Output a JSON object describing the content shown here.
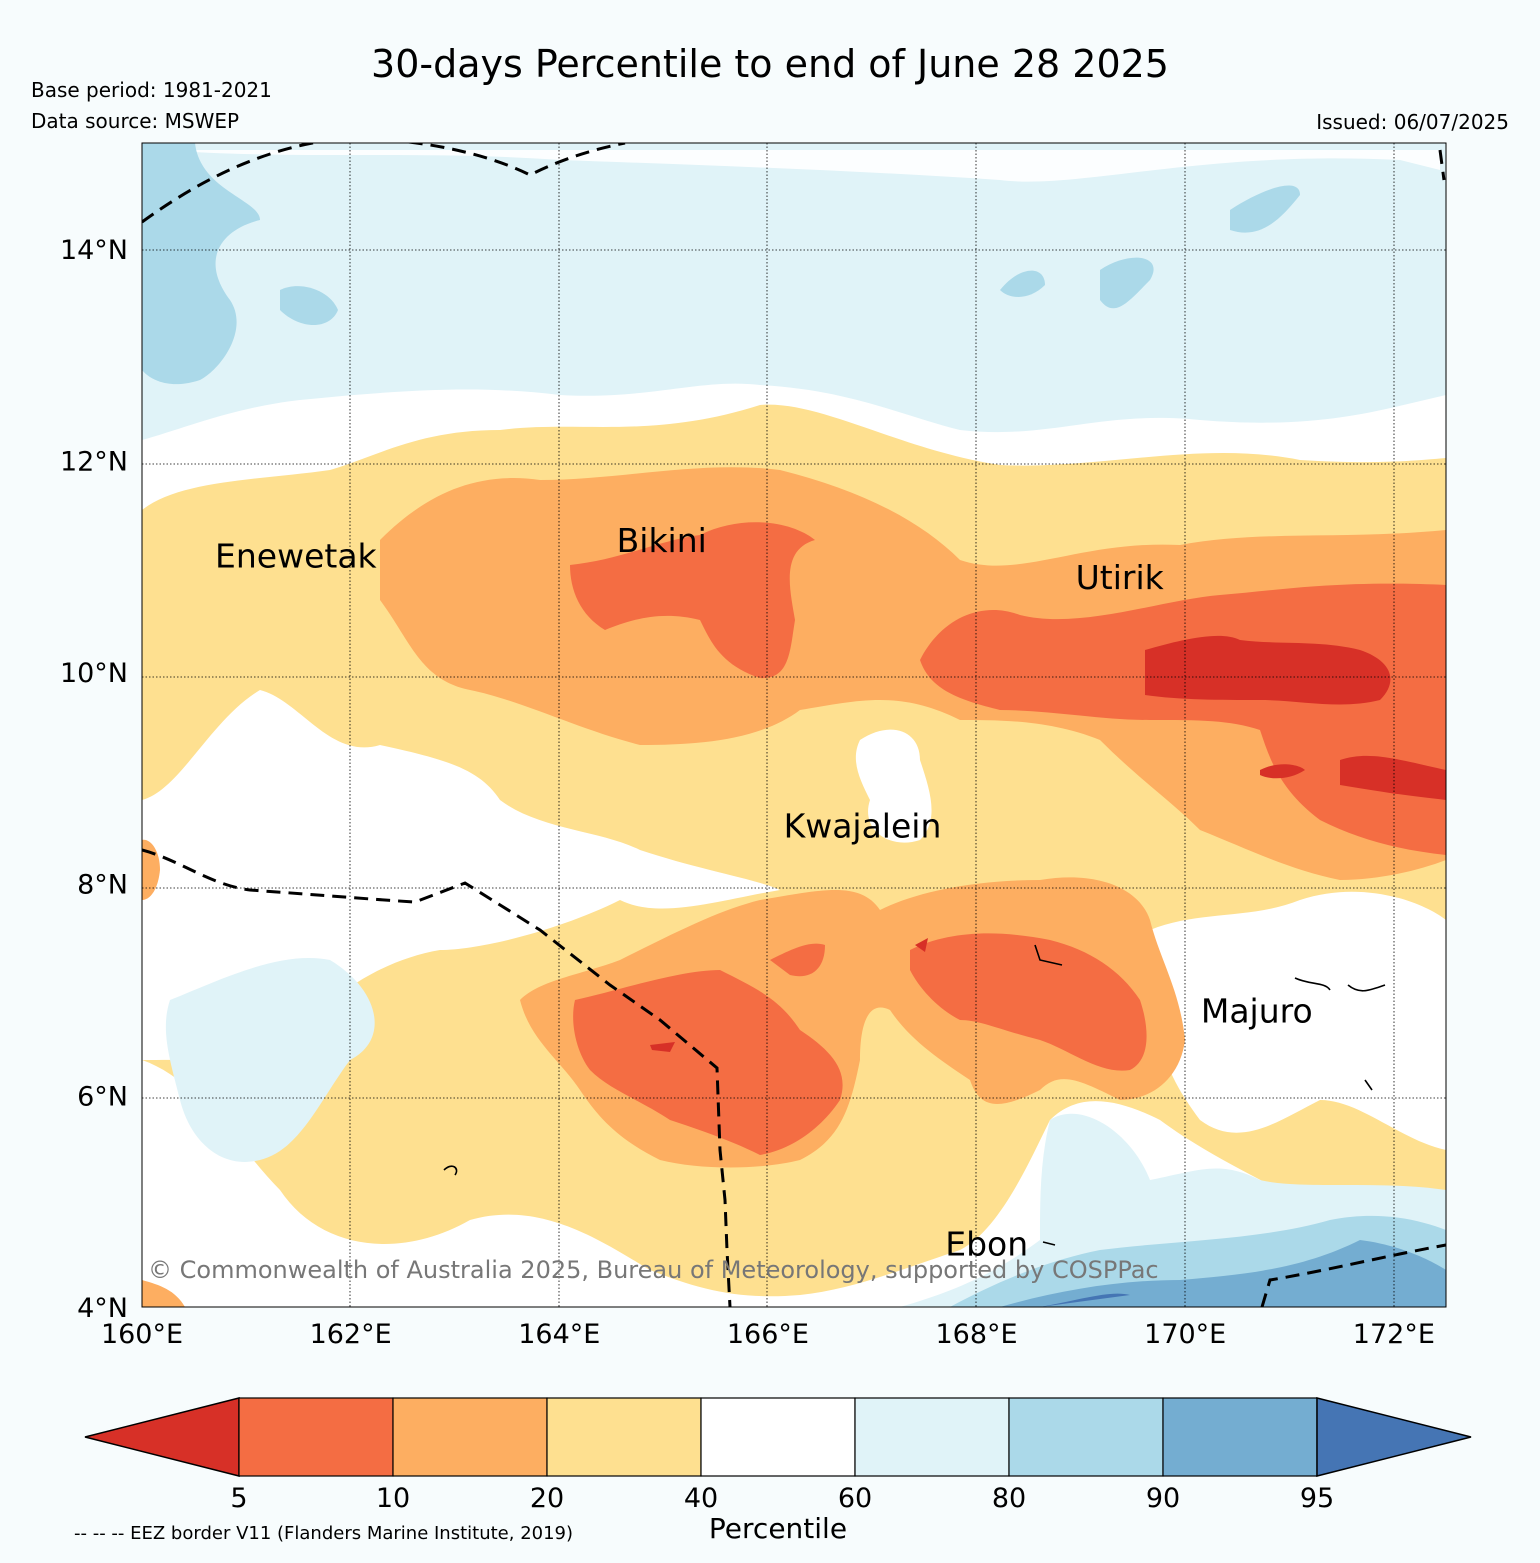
{
  "header": {
    "title": "30-days Percentile to end of June 28 2025",
    "base_period": "Base period: 1981-2021",
    "data_source": "Data source: MSWEP",
    "issued": "Issued: 06/07/2025"
  },
  "map": {
    "extent": {
      "lon": [
        160,
        172.5
      ],
      "lat": [
        4,
        15
      ]
    },
    "lat_ticks": [
      {
        "value": 4,
        "label": "4°N"
      },
      {
        "value": 6,
        "label": "6°N"
      },
      {
        "value": 8,
        "label": "8°N"
      },
      {
        "value": 10,
        "label": "10°N"
      },
      {
        "value": 12,
        "label": "12°N"
      },
      {
        "value": 14,
        "label": "14°N"
      }
    ],
    "lon_ticks": [
      {
        "value": 160,
        "label": "160°E"
      },
      {
        "value": 162,
        "label": "162°E"
      },
      {
        "value": 164,
        "label": "164°E"
      },
      {
        "value": 166,
        "label": "166°E"
      },
      {
        "value": 168,
        "label": "168°E"
      },
      {
        "value": 170,
        "label": "170°E"
      },
      {
        "value": 172,
        "label": "172°E"
      }
    ],
    "places": [
      {
        "name": "Enewetak",
        "lon": 160.7,
        "lat": 11.1
      },
      {
        "name": "Bikini",
        "lon": 164.55,
        "lat": 11.25
      },
      {
        "name": "Utirik",
        "lon": 168.95,
        "lat": 10.9
      },
      {
        "name": "Kwajalein",
        "lon": 166.15,
        "lat": 8.55
      },
      {
        "name": "Majuro",
        "lon": 170.15,
        "lat": 6.8
      },
      {
        "name": "Ebon",
        "lon": 167.7,
        "lat": 4.6
      }
    ],
    "copyright": "© Commonwealth of Australia 2025, Bureau of Meteorology, supported by COSPPac"
  },
  "colorbar": {
    "title": "Percentile",
    "colors": [
      "#d73027",
      "#f46d43",
      "#fdae61",
      "#fee090",
      "#ffffff",
      "#e0f3f8",
      "#abd9e9",
      "#74add1",
      "#4575b4"
    ],
    "tick_labels": [
      "5",
      "10",
      "20",
      "40",
      "60",
      "80",
      "90",
      "95"
    ]
  },
  "footnote": "-- -- -- EEZ border V11 (Flanders Marine Institute, 2019)"
}
